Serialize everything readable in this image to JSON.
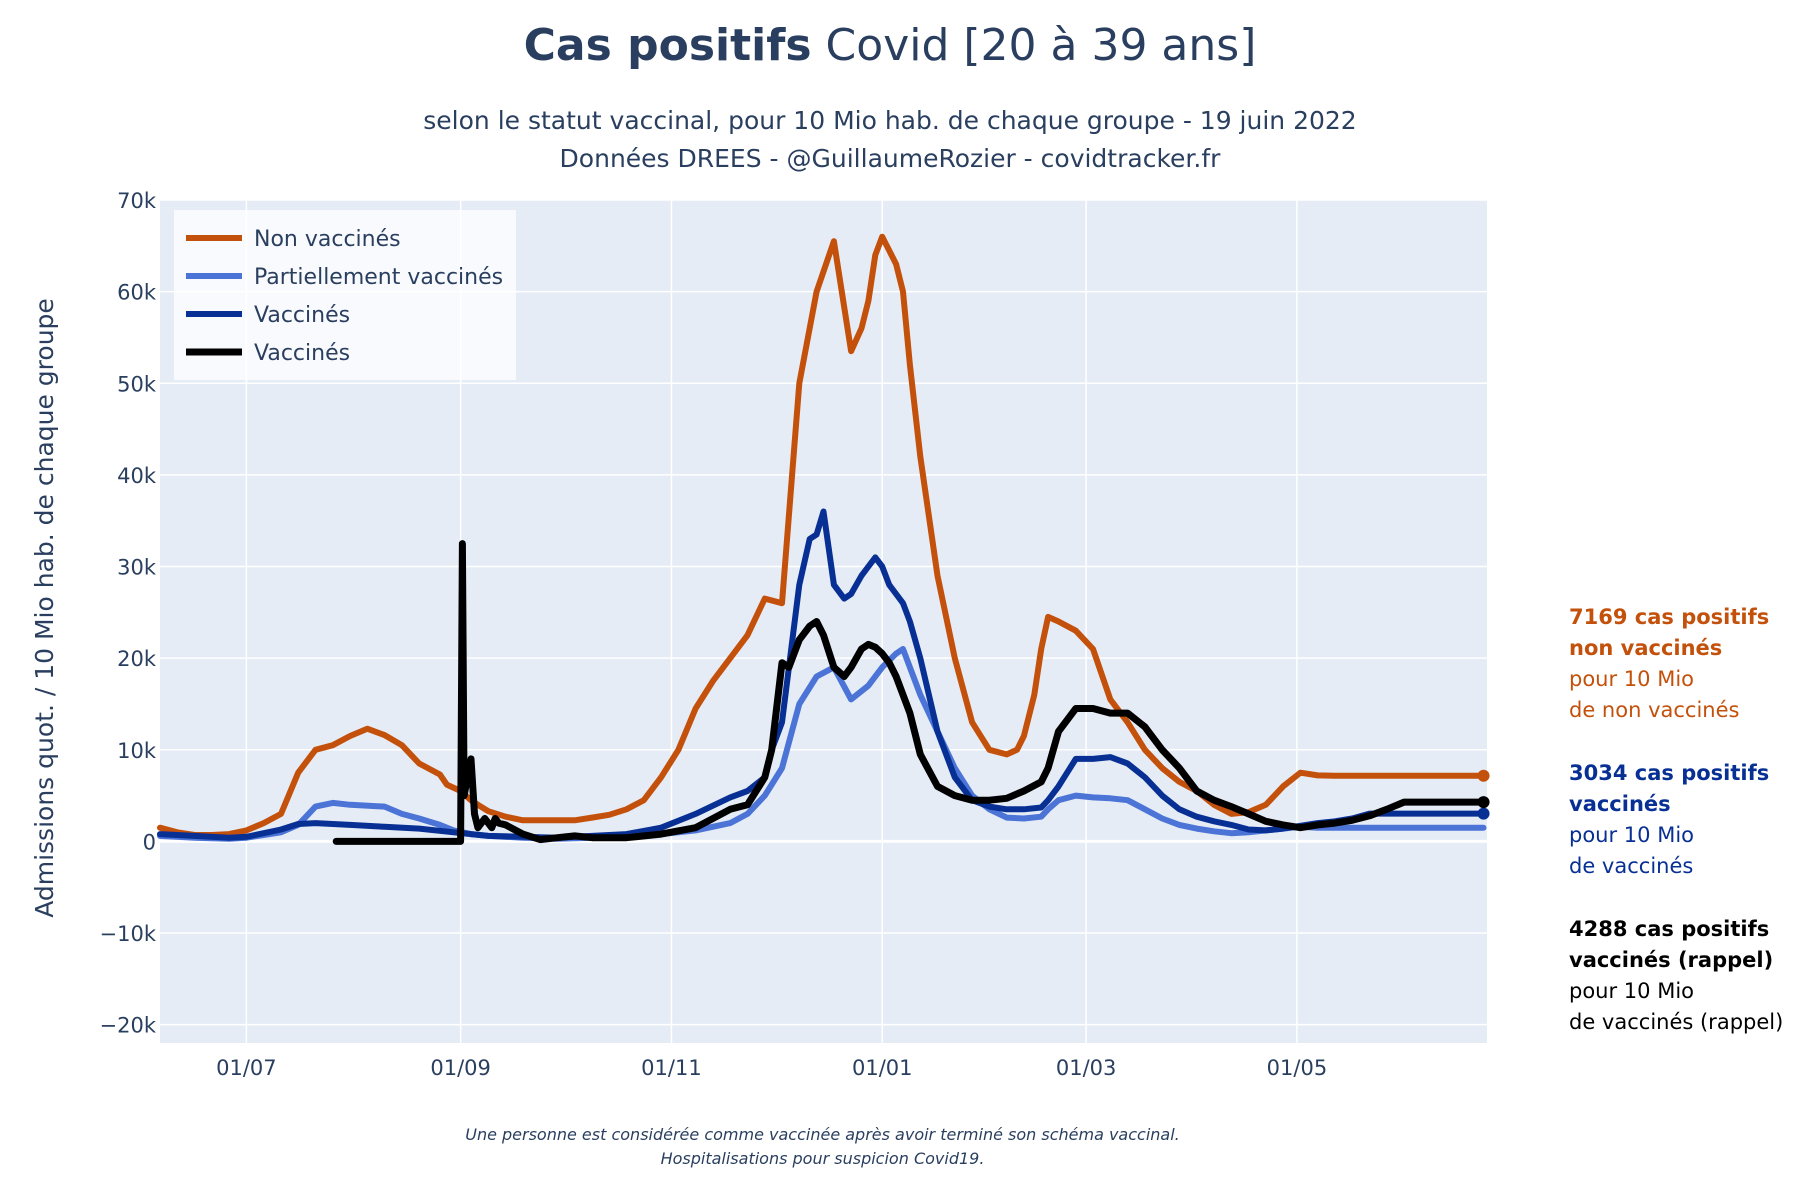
{
  "chart_data": {
    "type": "line",
    "title_bold": "Cas positifs",
    "title_rest": "Covid [20 à 39 ans]",
    "subtitle_line1": "selon le statut vaccinal, pour 10 Mio hab. de chaque groupe - 19 juin 2022",
    "subtitle_line2": "Données DREES - @GuillaumeRozier - covidtracker.fr",
    "ylabel": "Admissions quot. / 10 Mio hab. de chaque groupe",
    "ylim": [
      -22000,
      70000
    ],
    "yticks": [
      -20000,
      -10000,
      0,
      10000,
      20000,
      30000,
      40000,
      50000,
      60000,
      70000
    ],
    "ytick_labels": [
      "−20k",
      "−10k",
      "0",
      "10k",
      "20k",
      "30k",
      "40k",
      "50k",
      "60k",
      "70k"
    ],
    "x_unit": "days since 2021-06-01",
    "xlim": [
      5,
      389
    ],
    "xticks": [
      30,
      92,
      153,
      214,
      273,
      334
    ],
    "xtick_labels": [
      "01/07",
      "01/09",
      "01/11",
      "01/01",
      "01/03",
      "01/05"
    ],
    "legend_position": "top-left",
    "series": [
      {
        "name": "Non vaccinés",
        "color": "#c4510b",
        "width": 6,
        "x": [
          5,
          10,
          15,
          20,
          25,
          30,
          35,
          40,
          45,
          48,
          50,
          55,
          60,
          65,
          70,
          75,
          80,
          86,
          88,
          92,
          95,
          97,
          100,
          105,
          110,
          115,
          120,
          125,
          130,
          135,
          140,
          145,
          150,
          155,
          160,
          165,
          170,
          175,
          180,
          185,
          190,
          195,
          200,
          205,
          208,
          210,
          212,
          214,
          218,
          220,
          222,
          225,
          230,
          235,
          240,
          245,
          250,
          253,
          255,
          258,
          260,
          262,
          265,
          270,
          275,
          280,
          285,
          290,
          295,
          300,
          305,
          310,
          315,
          320,
          325,
          330,
          335,
          340,
          345,
          350,
          355,
          360,
          365,
          370,
          375,
          380,
          385,
          388
        ],
        "y": [
          1500,
          1000,
          700,
          700,
          800,
          1200,
          2000,
          3000,
          7500,
          9000,
          10000,
          10500,
          11500,
          12300,
          11600,
          10500,
          8500,
          7300,
          6200,
          5500,
          4500,
          4000,
          3300,
          2700,
          2300,
          2300,
          2300,
          2300,
          2600,
          2900,
          3500,
          4500,
          7000,
          10000,
          14500,
          17500,
          20000,
          22500,
          26500,
          26000,
          50000,
          60000,
          65500,
          53500,
          56000,
          59000,
          64000,
          66000,
          63000,
          60000,
          52000,
          42000,
          29000,
          20000,
          13000,
          10000,
          9500,
          10000,
          11500,
          16000,
          21000,
          24500,
          24000,
          23000,
          21000,
          15500,
          13000,
          10000,
          8000,
          6500,
          5500,
          4000,
          3000,
          3200,
          4000,
          6000,
          7500,
          7200,
          7169,
          7169,
          7169,
          7169,
          7169,
          7169,
          7169,
          7169,
          7169,
          7169
        ]
      },
      {
        "name": "Partiellement vaccinés",
        "color": "#4b74d6",
        "width": 6,
        "x": [
          5,
          15,
          25,
          30,
          35,
          40,
          45,
          48,
          50,
          55,
          60,
          70,
          75,
          80,
          86,
          90,
          95,
          100,
          110,
          120,
          130,
          140,
          150,
          160,
          170,
          175,
          180,
          185,
          190,
          195,
          200,
          205,
          210,
          214,
          218,
          220,
          222,
          225,
          230,
          235,
          240,
          245,
          250,
          255,
          260,
          262,
          265,
          270,
          275,
          280,
          285,
          290,
          295,
          300,
          305,
          310,
          315,
          320,
          325,
          330,
          335,
          340,
          345,
          350,
          355,
          360,
          365,
          370,
          375,
          380,
          385,
          388
        ],
        "y": [
          600,
          400,
          300,
          400,
          700,
          1000,
          1800,
          3000,
          3800,
          4200,
          4000,
          3800,
          3000,
          2500,
          1800,
          1200,
          800,
          600,
          400,
          300,
          400,
          500,
          800,
          1200,
          2000,
          3000,
          5000,
          8000,
          15000,
          18000,
          19000,
          15500,
          17000,
          19000,
          20500,
          21000,
          19000,
          16000,
          12000,
          8000,
          5000,
          3500,
          2600,
          2500,
          2700,
          3500,
          4500,
          5000,
          4800,
          4700,
          4500,
          3500,
          2500,
          1800,
          1400,
          1100,
          900,
          1000,
          1200,
          1400,
          1600,
          1500,
          1500,
          1500,
          1500,
          1500,
          1500,
          1500,
          1500,
          1500,
          1500,
          1500
        ]
      },
      {
        "name": "Vaccinés",
        "color": "#083094",
        "width": 6,
        "x": [
          5,
          15,
          25,
          30,
          35,
          40,
          45,
          50,
          60,
          70,
          80,
          90,
          95,
          100,
          110,
          120,
          130,
          140,
          150,
          160,
          170,
          175,
          180,
          182,
          185,
          190,
          193,
          195,
          197,
          200,
          203,
          205,
          208,
          210,
          212,
          214,
          216,
          218,
          220,
          222,
          225,
          230,
          235,
          240,
          245,
          250,
          255,
          260,
          262,
          265,
          270,
          275,
          280,
          285,
          290,
          295,
          300,
          305,
          310,
          315,
          320,
          325,
          330,
          335,
          340,
          345,
          350,
          355,
          360,
          365,
          370,
          375,
          380,
          385,
          388
        ],
        "y": [
          800,
          600,
          400,
          500,
          900,
          1300,
          1900,
          2000,
          1800,
          1600,
          1400,
          1000,
          800,
          600,
          500,
          400,
          600,
          800,
          1500,
          3000,
          4800,
          5500,
          7000,
          10000,
          13000,
          28000,
          33000,
          33500,
          36000,
          28000,
          26500,
          27000,
          29000,
          30000,
          31000,
          30000,
          28000,
          27000,
          26000,
          24000,
          20000,
          12000,
          7000,
          4500,
          3800,
          3500,
          3500,
          3700,
          4500,
          6000,
          9000,
          9000,
          9200,
          8500,
          7000,
          5000,
          3500,
          2700,
          2200,
          1800,
          1300,
          1200,
          1400,
          1700,
          2000,
          2200,
          2500,
          3034,
          3034,
          3034,
          3034,
          3034,
          3034,
          3034,
          3034
        ]
      },
      {
        "name": "Vaccinés",
        "color": "#000000",
        "width": 7,
        "x": [
          56,
          60,
          70,
          80,
          90,
          92,
          92.5,
          93,
          95,
          96,
          97,
          99,
          100,
          101,
          102,
          103,
          105,
          110,
          115,
          120,
          125,
          130,
          140,
          150,
          160,
          170,
          175,
          180,
          182,
          185,
          187,
          190,
          193,
          195,
          197,
          200,
          203,
          205,
          208,
          210,
          212,
          214,
          216,
          218,
          220,
          222,
          225,
          230,
          235,
          240,
          245,
          250,
          255,
          260,
          262,
          265,
          270,
          275,
          280,
          285,
          290,
          295,
          300,
          305,
          310,
          315,
          320,
          325,
          330,
          335,
          340,
          345,
          350,
          355,
          360,
          365,
          370,
          375,
          380,
          385,
          388
        ],
        "y": [
          0,
          0,
          0,
          0,
          0,
          0,
          32500,
          5000,
          9000,
          3000,
          1500,
          2500,
          2000,
          1500,
          2500,
          2000,
          1800,
          800,
          200,
          400,
          600,
          400,
          400,
          800,
          1500,
          3500,
          4000,
          7000,
          10000,
          19500,
          19000,
          22000,
          23500,
          24000,
          22500,
          19000,
          18000,
          19000,
          21000,
          21500,
          21200,
          20500,
          19500,
          18000,
          16000,
          14000,
          9500,
          6000,
          5000,
          4500,
          4500,
          4700,
          5500,
          6500,
          8000,
          12000,
          14500,
          14500,
          14000,
          14000,
          12500,
          10000,
          8000,
          5500,
          4500,
          3800,
          3000,
          2200,
          1800,
          1500,
          1800,
          2000,
          2300,
          2800,
          3500,
          4288,
          4288,
          4288,
          4288,
          4288,
          4288
        ]
      }
    ],
    "annotations": [
      {
        "color": "#c4510b",
        "bold": [
          "7169 cas positifs",
          "non vaccinés"
        ],
        "normal": [
          "pour 10 Mio",
          "de non vaccinés"
        ]
      },
      {
        "color": "#083094",
        "bold": [
          "3034 cas positifs",
          "vaccinés"
        ],
        "normal": [
          "pour 10 Mio",
          "de vaccinés"
        ]
      },
      {
        "color": "#000000",
        "bold": [
          "4288 cas positifs",
          "vaccinés (rappel)"
        ],
        "normal": [
          "pour 10 Mio",
          "de vaccinés (rappel)"
        ]
      }
    ],
    "footnote_line1": "Une personne est considérée comme vaccinée après avoir terminé son schéma vaccinal.",
    "footnote_line2": "Hospitalisations pour suspicion Covid19."
  }
}
